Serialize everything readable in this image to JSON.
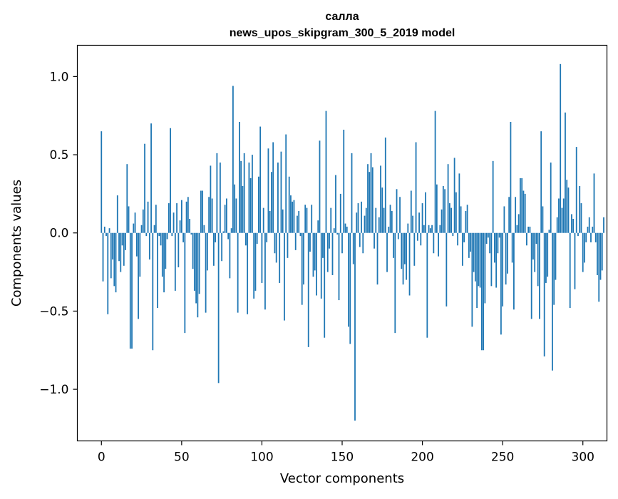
{
  "chart_data": {
    "type": "bar",
    "title": "салла",
    "subtitle": "news_upos_skipgram_300_5_2019 model",
    "xlabel": "Vector components",
    "ylabel": "Components values",
    "xlim": [
      -15,
      315
    ],
    "ylim": [
      -1.33,
      1.2
    ],
    "xticks": [
      0,
      50,
      100,
      150,
      200,
      250,
      300
    ],
    "xtick_labels": [
      "0",
      "50",
      "100",
      "150",
      "200",
      "250",
      "300"
    ],
    "yticks": [
      -1.0,
      -0.5,
      0.0,
      0.5,
      1.0
    ],
    "ytick_labels": [
      "−1.0",
      "−0.5",
      "0.0",
      "0.5",
      "1.0"
    ],
    "grid": false,
    "bar_color": "#1f77b4",
    "values": [
      0.65,
      -0.31,
      0.04,
      -0.02,
      -0.52,
      0.03,
      -0.29,
      -0.17,
      -0.34,
      -0.38,
      0.24,
      -0.18,
      -0.25,
      -0.08,
      -0.21,
      -0.11,
      0.44,
      0.17,
      -0.74,
      -0.74,
      0.06,
      0.13,
      -0.15,
      -0.55,
      -0.28,
      0.05,
      0.15,
      0.57,
      -0.02,
      0.2,
      -0.17,
      0.7,
      -0.75,
      0.05,
      0.18,
      -0.48,
      -0.02,
      -0.08,
      -0.28,
      -0.38,
      -0.23,
      -0.04,
      0.19,
      0.67,
      -0.02,
      0.13,
      -0.37,
      0.19,
      -0.22,
      0.08,
      0.21,
      -0.06,
      -0.64,
      0.2,
      0.23,
      0.09,
      -0.01,
      -0.23,
      -0.37,
      -0.45,
      -0.54,
      -0.39,
      0.27,
      0.27,
      0.05,
      -0.51,
      -0.24,
      0.23,
      0.43,
      0.22,
      -0.21,
      -0.06,
      0.51,
      -0.96,
      0.45,
      -0.18,
      0.01,
      0.18,
      0.22,
      -0.04,
      -0.29,
      0.03,
      0.94,
      0.31,
      0.22,
      -0.51,
      0.71,
      0.46,
      0.3,
      0.51,
      -0.08,
      -0.52,
      0.45,
      0.35,
      0.5,
      -0.42,
      -0.37,
      -0.07,
      0.36,
      0.68,
      -0.32,
      0.16,
      -0.49,
      -0.06,
      0.54,
      0.14,
      0.39,
      0.58,
      -0.13,
      -0.19,
      0.45,
      -0.32,
      0.52,
      0.15,
      -0.56,
      0.63,
      -0.16,
      0.36,
      0.24,
      0.2,
      0.21,
      -0.11,
      0.11,
      0.14,
      -0.02,
      -0.46,
      -0.33,
      0.18,
      0.16,
      -0.73,
      -0.12,
      0.18,
      -0.28,
      -0.24,
      -0.4,
      0.08,
      0.59,
      -0.42,
      -0.16,
      -0.67,
      0.78,
      -0.25,
      -0.1,
      0.16,
      -0.27,
      0.03,
      0.37,
      -0.01,
      -0.43,
      0.25,
      -0.13,
      0.66,
      0.06,
      0.04,
      -0.6,
      -0.71,
      0.51,
      -0.2,
      -1.2,
      0.13,
      0.19,
      -0.09,
      0.2,
      -0.13,
      0.11,
      0.16,
      0.44,
      0.39,
      0.51,
      0.42,
      -0.1,
      0.16,
      -0.33,
      0.1,
      0.43,
      0.29,
      0.16,
      0.61,
      -0.25,
      0.04,
      0.18,
      0.14,
      -0.16,
      -0.64,
      0.28,
      -0.04,
      0.23,
      -0.23,
      -0.33,
      -0.2,
      -0.3,
      0.06,
      -0.4,
      0.27,
      0.11,
      -0.21,
      0.58,
      -0.05,
      0.13,
      -0.08,
      0.19,
      0.05,
      0.26,
      -0.67,
      0.05,
      0.03,
      0.05,
      -0.13,
      0.78,
      0.31,
      -0.15,
      0.05,
      0.15,
      0.3,
      0.28,
      -0.47,
      0.44,
      0.19,
      0.16,
      -0.02,
      0.48,
      0.26,
      -0.08,
      0.38,
      0.17,
      -0.21,
      -0.06,
      0.14,
      0.18,
      -0.16,
      -0.12,
      -0.6,
      -0.25,
      -0.31,
      -0.48,
      -0.34,
      -0.35,
      -0.75,
      -0.75,
      -0.45,
      -0.07,
      -0.03,
      -0.13,
      -0.34,
      0.46,
      -0.19,
      -0.35,
      -0.13,
      -0.03,
      -0.65,
      -0.47,
      0.17,
      -0.33,
      -0.26,
      0.23,
      0.71,
      -0.19,
      -0.49,
      0.23,
      0.05,
      0.12,
      0.35,
      0.35,
      0.27,
      0.25,
      -0.08,
      0.04,
      0.04,
      -0.55,
      -0.17,
      -0.25,
      -0.07,
      -0.34,
      -0.55,
      0.65,
      0.17,
      -0.79,
      -0.32,
      -0.28,
      0.02,
      0.45,
      -0.88,
      -0.46,
      -0.3,
      0.1,
      0.22,
      1.08,
      0.16,
      0.22,
      0.77,
      0.34,
      0.29,
      -0.48,
      0.12,
      0.09,
      -0.36,
      0.55,
      -0.02,
      0.3,
      0.19,
      -0.25,
      -0.19,
      -0.06,
      0.04,
      0.1,
      -0.06,
      0.04,
      0.38,
      -0.06,
      -0.27,
      -0.44,
      -0.3,
      -0.24,
      0.1
    ]
  }
}
